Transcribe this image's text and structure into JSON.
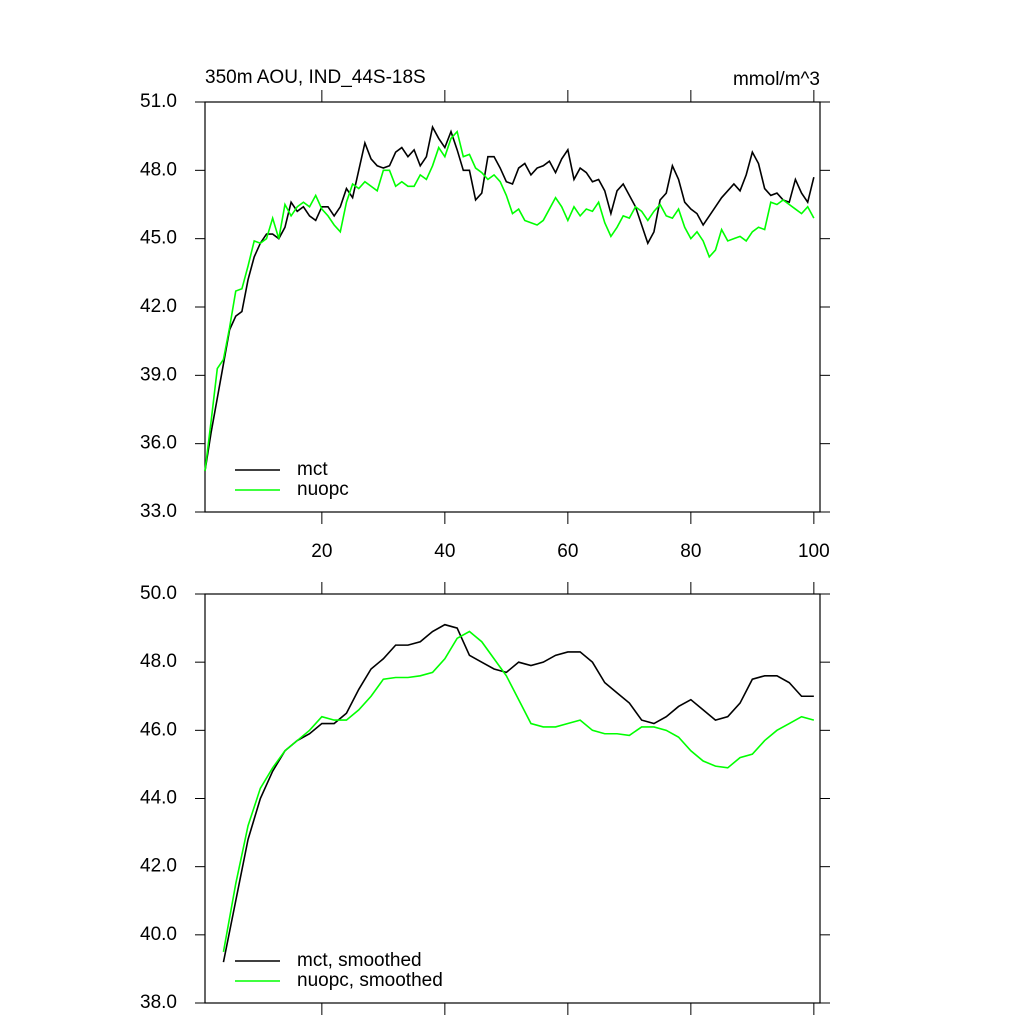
{
  "chart_data": [
    {
      "type": "line",
      "title": "350m AOU, IND_44S-18S",
      "units": "mmol/m^3",
      "x": [
        1,
        2,
        3,
        4,
        5,
        6,
        7,
        8,
        9,
        10,
        11,
        12,
        13,
        14,
        15,
        16,
        17,
        18,
        19,
        20,
        21,
        22,
        23,
        24,
        25,
        26,
        27,
        28,
        29,
        30,
        31,
        32,
        33,
        34,
        35,
        36,
        37,
        38,
        39,
        40,
        41,
        42,
        43,
        44,
        45,
        46,
        47,
        48,
        49,
        50,
        51,
        52,
        53,
        54,
        55,
        56,
        57,
        58,
        59,
        60,
        61,
        62,
        63,
        64,
        65,
        66,
        67,
        68,
        69,
        70,
        71,
        72,
        73,
        74,
        75,
        76,
        77,
        78,
        79,
        80,
        81,
        82,
        83,
        84,
        85,
        86,
        87,
        88,
        89,
        90,
        91,
        92,
        93,
        94,
        95,
        96,
        97,
        98,
        99,
        100
      ],
      "series": [
        {
          "name": "mct",
          "color": "#000000",
          "values": [
            34.8,
            36.5,
            38,
            39.5,
            41,
            41.6,
            41.8,
            43.2,
            44.2,
            44.8,
            45.2,
            45.2,
            45.0,
            45.5,
            46.6,
            46.2,
            46.4,
            46.0,
            45.8,
            46.4,
            46.4,
            46.0,
            46.4,
            47.2,
            46.8,
            48.0,
            49.2,
            48.5,
            48.2,
            48.1,
            48.2,
            48.8,
            49.0,
            48.6,
            48.9,
            48.2,
            48.6,
            49.9,
            49.4,
            49.0,
            49.7,
            48.9,
            48.0,
            48.0,
            46.7,
            47.0,
            48.6,
            48.6,
            48.1,
            47.5,
            47.4,
            48.1,
            48.3,
            47.8,
            48.1,
            48.2,
            48.4,
            47.9,
            48.5,
            48.9,
            47.6,
            48.1,
            47.9,
            47.5,
            47.6,
            47.1,
            46.1,
            47.1,
            47.4,
            46.9,
            46.4,
            45.6,
            44.8,
            45.3,
            46.7,
            47.0,
            48.2,
            47.6,
            46.6,
            46.3,
            46.1,
            45.6,
            46.0,
            46.4,
            46.8,
            47.1,
            47.4,
            47.1,
            47.8,
            48.8,
            48.3,
            47.2,
            46.9,
            47.0,
            46.7,
            46.6,
            47.6,
            47.0,
            46.6,
            47.7
          ]
        },
        {
          "name": "nuopc",
          "color": "#00ff00",
          "values": [
            34.8,
            37,
            39.3,
            39.7,
            41.1,
            42.7,
            42.8,
            43.8,
            44.9,
            44.8,
            45.0,
            45.9,
            45.0,
            46.5,
            46.0,
            46.4,
            46.6,
            46.4,
            46.9,
            46.3,
            46.0,
            45.6,
            45.3,
            46.6,
            47.4,
            47.2,
            47.5,
            47.3,
            47.1,
            48.0,
            48.0,
            47.3,
            47.5,
            47.3,
            47.3,
            47.8,
            47.6,
            48.2,
            49.0,
            48.6,
            49.4,
            49.7,
            48.6,
            48.7,
            48.1,
            47.9,
            47.6,
            47.8,
            47.5,
            46.9,
            46.1,
            46.3,
            45.8,
            45.7,
            45.6,
            45.8,
            46.3,
            46.8,
            46.4,
            45.8,
            46.4,
            46.0,
            46.3,
            46.2,
            46.6,
            45.7,
            45.1,
            45.5,
            46.0,
            45.9,
            46.4,
            46.2,
            45.8,
            46.2,
            46.5,
            46.0,
            45.9,
            46.3,
            45.5,
            45.0,
            45.3,
            44.9,
            44.2,
            44.5,
            45.4,
            44.9,
            45.0,
            45.1,
            44.9,
            45.3,
            45.5,
            45.4,
            46.6,
            46.5,
            46.7,
            46.5,
            46.3,
            46.1,
            46.4,
            45.9
          ]
        }
      ],
      "xlim": [
        1,
        101
      ],
      "xticks": [
        20,
        40,
        60,
        80,
        100
      ],
      "ylim": [
        33,
        51
      ],
      "yticks": [
        {
          "value": 33,
          "label": "33.0"
        },
        {
          "value": 36,
          "label": "36.0"
        },
        {
          "value": 39,
          "label": "39.0"
        },
        {
          "value": 42,
          "label": "42.0"
        },
        {
          "value": 45,
          "label": "45.0"
        },
        {
          "value": 48,
          "label": "48.0"
        },
        {
          "value": 51,
          "label": "51.0"
        }
      ],
      "legend": "lower left"
    },
    {
      "type": "line",
      "x": [
        4,
        6,
        8,
        10,
        12,
        14,
        16,
        18,
        20,
        22,
        24,
        26,
        28,
        30,
        32,
        34,
        36,
        38,
        40,
        42,
        44,
        46,
        48,
        50,
        52,
        54,
        56,
        58,
        60,
        62,
        64,
        66,
        68,
        70,
        72,
        74,
        76,
        78,
        80,
        82,
        84,
        86,
        88,
        90,
        92,
        94,
        96,
        98,
        100
      ],
      "series": [
        {
          "name": "mct, smoothed",
          "color": "#000000",
          "values": [
            39.2,
            41.0,
            42.8,
            44.0,
            44.8,
            45.4,
            45.7,
            45.9,
            46.2,
            46.2,
            46.5,
            47.2,
            47.8,
            48.1,
            48.5,
            48.5,
            48.6,
            48.9,
            49.1,
            49.0,
            48.2,
            48.0,
            47.8,
            47.7,
            48.0,
            47.9,
            48.0,
            48.2,
            48.3,
            48.3,
            48.0,
            47.4,
            47.1,
            46.8,
            46.3,
            46.2,
            46.4,
            46.7,
            46.9,
            46.6,
            46.3,
            46.4,
            46.8,
            47.5,
            47.6,
            47.6,
            47.4,
            47.0,
            47.0
          ]
        },
        {
          "name": "nuopc, smoothed",
          "color": "#00ff00",
          "values": [
            39.5,
            41.5,
            43.2,
            44.3,
            44.9,
            45.4,
            45.7,
            46.0,
            46.4,
            46.3,
            46.3,
            46.6,
            47.0,
            47.5,
            47.55,
            47.55,
            47.6,
            47.7,
            48.1,
            48.7,
            48.9,
            48.6,
            48.1,
            47.6,
            46.9,
            46.2,
            46.1,
            46.1,
            46.2,
            46.3,
            46.0,
            45.9,
            45.9,
            45.85,
            46.1,
            46.1,
            46.0,
            45.8,
            45.4,
            45.1,
            44.95,
            44.9,
            45.2,
            45.3,
            45.7,
            46.0,
            46.2,
            46.4,
            46.3
          ]
        }
      ],
      "xlim": [
        1,
        101
      ],
      "xticks": [
        20,
        40,
        60,
        80,
        100
      ],
      "ylim": [
        38,
        50
      ],
      "yticks": [
        {
          "value": 38,
          "label": "38.0"
        },
        {
          "value": 40,
          "label": "40.0"
        },
        {
          "value": 42,
          "label": "42.0"
        },
        {
          "value": 44,
          "label": "44.0"
        },
        {
          "value": 46,
          "label": "46.0"
        },
        {
          "value": 48,
          "label": "48.0"
        },
        {
          "value": 50,
          "label": "50.0"
        }
      ],
      "legend": "lower left"
    }
  ]
}
